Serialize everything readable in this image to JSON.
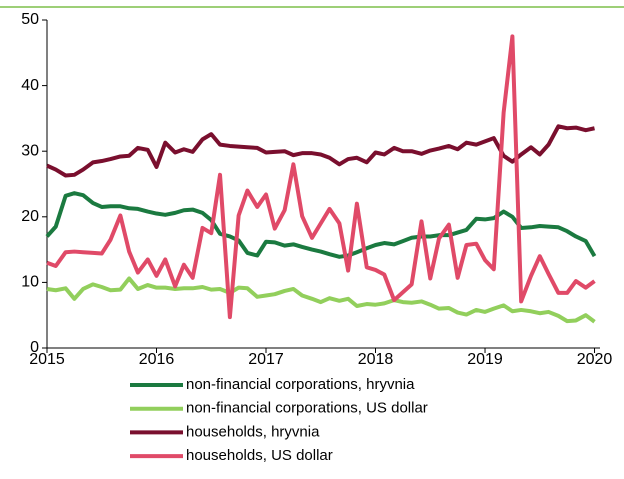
{
  "chart_data": {
    "type": "line",
    "x": [
      2015.0,
      2015.08,
      2015.17,
      2015.25,
      2015.33,
      2015.42,
      2015.5,
      2015.58,
      2015.67,
      2015.75,
      2015.83,
      2015.92,
      2016.0,
      2016.08,
      2016.17,
      2016.25,
      2016.33,
      2016.42,
      2016.5,
      2016.58,
      2016.67,
      2016.75,
      2016.83,
      2016.92,
      2017.0,
      2017.08,
      2017.17,
      2017.25,
      2017.33,
      2017.42,
      2017.5,
      2017.58,
      2017.67,
      2017.75,
      2017.83,
      2017.92,
      2018.0,
      2018.08,
      2018.17,
      2018.25,
      2018.33,
      2018.42,
      2018.5,
      2018.58,
      2018.67,
      2018.75,
      2018.83,
      2018.92,
      2019.0,
      2019.08,
      2019.17,
      2019.25,
      2019.33,
      2019.42,
      2019.5,
      2019.58,
      2019.67,
      2019.75,
      2019.83,
      2019.92,
      2020.0
    ],
    "series": [
      {
        "name": "non-financial corporations, hryvnia",
        "color": "#1b7a40",
        "values": [
          17,
          18.5,
          23.2,
          23.6,
          23.3,
          22.1,
          21.5,
          21.6,
          21.6,
          21.3,
          21.2,
          20.8,
          20.5,
          20.3,
          20.6,
          21,
          21.1,
          20.6,
          19.5,
          17.4,
          17,
          16.4,
          14.5,
          14.1,
          16.2,
          16.1,
          15.6,
          15.8,
          15.4,
          15,
          14.7,
          14.3,
          13.9,
          14.1,
          14.6,
          15.2,
          15.7,
          16,
          15.8,
          16.3,
          16.8,
          17,
          17,
          17.2,
          17.2,
          17.6,
          18,
          19.7,
          19.6,
          19.8,
          20.8,
          20,
          18.3,
          18.4,
          18.6,
          18.5,
          18.4,
          17.8,
          17,
          16.3,
          14
        ]
      },
      {
        "name": "non-financial corporations, US dollar",
        "color": "#92cf5c",
        "values": [
          9,
          8.8,
          9.1,
          7.5,
          9,
          9.7,
          9.3,
          8.8,
          8.9,
          10.6,
          9,
          9.6,
          9.2,
          9.2,
          9,
          9.1,
          9.1,
          9.3,
          8.9,
          9,
          8.4,
          9.2,
          9.1,
          7.8,
          8,
          8.2,
          8.7,
          9,
          8,
          7.5,
          7,
          7.6,
          7.2,
          7.5,
          6.4,
          6.7,
          6.6,
          6.8,
          7.3,
          7,
          6.9,
          7.1,
          6.6,
          6,
          6.1,
          5.4,
          5.1,
          5.8,
          5.5,
          6,
          6.5,
          5.6,
          5.8,
          5.6,
          5.3,
          5.5,
          4.9,
          4.1,
          4.2,
          5,
          4
        ]
      },
      {
        "name": "households, hryvnia",
        "color": "#7a0f2e",
        "values": [
          27.8,
          27.2,
          26.3,
          26.4,
          27.2,
          28.3,
          28.5,
          28.8,
          29.2,
          29.3,
          30.5,
          30.2,
          27.6,
          31.3,
          29.8,
          30.3,
          29.9,
          31.8,
          32.6,
          31,
          30.8,
          30.7,
          30.6,
          30.5,
          29.8,
          29.9,
          30,
          29.4,
          29.7,
          29.7,
          29.5,
          29,
          28,
          28.8,
          29,
          28.3,
          29.8,
          29.5,
          30.5,
          30,
          30,
          29.6,
          30.1,
          30.4,
          30.8,
          30.3,
          31.3,
          31,
          31.5,
          32,
          29.3,
          28.4,
          29.5,
          30.6,
          29.5,
          31,
          33.8,
          33.5,
          33.6,
          33.2,
          33.5
        ]
      },
      {
        "name": "households, US dollar",
        "color": "#e04a68",
        "values": [
          13,
          12.5,
          14.6,
          14.7,
          14.6,
          14.5,
          14.4,
          16.5,
          20.2,
          14.7,
          11.5,
          13.5,
          11,
          13.5,
          9.4,
          12.7,
          10.7,
          18.3,
          17.5,
          26.4,
          4.7,
          20.2,
          24,
          21.5,
          23.4,
          18.2,
          21,
          28,
          20.1,
          16.8,
          19,
          21.2,
          19,
          11.8,
          22,
          12.3,
          11.9,
          11.2,
          7.3,
          8.5,
          9.7,
          19.3,
          10.6,
          16.7,
          18.8,
          10.7,
          15.7,
          15.9,
          13.4,
          12,
          35.9,
          47.5,
          7.1,
          11,
          14,
          11.3,
          8.4,
          8.4,
          10.2,
          9.2,
          10.2
        ]
      }
    ],
    "xlim": [
      2015,
      2020.05
    ],
    "xticks": [
      2015,
      2016,
      2017,
      2018,
      2019,
      2020
    ],
    "ylim": [
      0,
      50
    ],
    "yticks": [
      0,
      10,
      20,
      30,
      40,
      50
    ]
  }
}
